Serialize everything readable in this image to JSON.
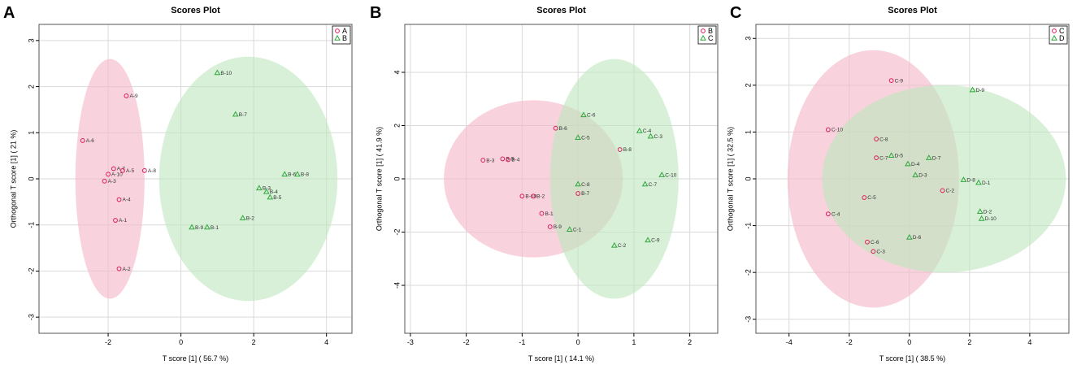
{
  "colors": {
    "group1_point": "#dd1c5a",
    "group2_point": "#2ea83a",
    "group1_ellipse": "#f4b6c6",
    "group2_ellipse": "#bfe6bf",
    "grid": "#d9d9d9",
    "frame": "#555555"
  },
  "chart_data": [
    {
      "type": "scatter",
      "panel_label": "A",
      "title": "Scores Plot",
      "xlabel": "T score [1] ( 56.7 %)",
      "ylabel": "Orthogonal T score [1] ( 21 %)",
      "xlim": [
        -3.9,
        4.7
      ],
      "ylim": [
        -3.35,
        3.35
      ],
      "xticks": [
        -2,
        0,
        2,
        4
      ],
      "yticks": [
        -3,
        -2,
        -1,
        0,
        1,
        2,
        3
      ],
      "grid": true,
      "legend_position": "top-right",
      "series": [
        {
          "name": "A",
          "marker": "circle",
          "ellipse": {
            "cx": -1.95,
            "cy": 0,
            "rx": 0.95,
            "ry": 2.6
          },
          "points": [
            {
              "label": "A-9",
              "x": -1.5,
              "y": 1.8
            },
            {
              "label": "A-6",
              "x": -2.7,
              "y": 0.83
            },
            {
              "label": "A-7",
              "x": -1.85,
              "y": 0.22
            },
            {
              "label": "A-5",
              "x": -1.6,
              "y": 0.18
            },
            {
              "label": "A-10",
              "x": -2.0,
              "y": 0.1
            },
            {
              "label": "A-8",
              "x": -1.0,
              "y": 0.18
            },
            {
              "label": "A-3",
              "x": -2.1,
              "y": -0.05
            },
            {
              "label": "A-4",
              "x": -1.7,
              "y": -0.45
            },
            {
              "label": "A-1",
              "x": -1.8,
              "y": -0.9
            },
            {
              "label": "A-2",
              "x": -1.7,
              "y": -1.95
            }
          ]
        },
        {
          "name": "B",
          "marker": "triangle",
          "ellipse": {
            "cx": 1.85,
            "cy": 0,
            "rx": 2.45,
            "ry": 2.65
          },
          "points": [
            {
              "label": "B-10",
              "x": 1.0,
              "y": 2.3
            },
            {
              "label": "B-7",
              "x": 1.5,
              "y": 1.4
            },
            {
              "label": "B-6",
              "x": 2.85,
              "y": 0.1
            },
            {
              "label": "B-8",
              "x": 3.2,
              "y": 0.1
            },
            {
              "label": "B-3",
              "x": 2.15,
              "y": -0.2
            },
            {
              "label": "B-4",
              "x": 2.35,
              "y": -0.28
            },
            {
              "label": "B-5",
              "x": 2.45,
              "y": -0.4
            },
            {
              "label": "B-2",
              "x": 1.7,
              "y": -0.85
            },
            {
              "label": "B-9",
              "x": 0.3,
              "y": -1.05
            },
            {
              "label": "B-1",
              "x": 0.72,
              "y": -1.05
            }
          ]
        }
      ]
    },
    {
      "type": "scatter",
      "panel_label": "B",
      "title": "Scores Plot",
      "xlabel": "T score [1] ( 14.1 %)",
      "ylabel": "Orthogonal T score [1] ( 41.9 %)",
      "xlim": [
        -3.1,
        2.5
      ],
      "ylim": [
        -5.8,
        5.8
      ],
      "xticks": [
        -3,
        -2,
        -1,
        0,
        1,
        2
      ],
      "yticks": [
        -4,
        -2,
        0,
        2,
        4
      ],
      "grid": true,
      "legend_position": "top-right",
      "series": [
        {
          "name": "B",
          "marker": "circle",
          "ellipse": {
            "cx": -0.8,
            "cy": 0,
            "rx": 1.6,
            "ry": 2.95
          },
          "points": [
            {
              "label": "B-6",
              "x": -0.4,
              "y": 1.9
            },
            {
              "label": "B-8",
              "x": 0.75,
              "y": 1.1
            },
            {
              "label": "B-3",
              "x": -1.7,
              "y": 0.7
            },
            {
              "label": "B-5",
              "x": -1.35,
              "y": 0.75
            },
            {
              "label": "B-4",
              "x": -1.25,
              "y": 0.72
            },
            {
              "label": "B-10",
              "x": -1.0,
              "y": -0.65
            },
            {
              "label": "B-2",
              "x": -0.8,
              "y": -0.65
            },
            {
              "label": "B-7",
              "x": 0.0,
              "y": -0.55
            },
            {
              "label": "B-1",
              "x": -0.65,
              "y": -1.3
            },
            {
              "label": "B-9",
              "x": -0.5,
              "y": -1.8
            }
          ]
        },
        {
          "name": "C",
          "marker": "triangle",
          "ellipse": {
            "cx": 0.65,
            "cy": 0,
            "rx": 1.15,
            "ry": 4.5
          },
          "points": [
            {
              "label": "C-6",
              "x": 0.1,
              "y": 2.4
            },
            {
              "label": "C-4",
              "x": 1.1,
              "y": 1.8
            },
            {
              "label": "C-3",
              "x": 1.3,
              "y": 1.6
            },
            {
              "label": "C-5",
              "x": 0.0,
              "y": 1.55
            },
            {
              "label": "C-10",
              "x": 1.5,
              "y": 0.15
            },
            {
              "label": "C-8",
              "x": 0.0,
              "y": -0.2
            },
            {
              "label": "C-7",
              "x": 1.2,
              "y": -0.2
            },
            {
              "label": "C-1",
              "x": -0.15,
              "y": -1.9
            },
            {
              "label": "C-9",
              "x": 1.25,
              "y": -2.3
            },
            {
              "label": "C-2",
              "x": 0.65,
              "y": -2.5
            }
          ]
        }
      ]
    },
    {
      "type": "scatter",
      "panel_label": "C",
      "title": "Scores Plot",
      "xlabel": "T score [1] ( 38.5 %)",
      "ylabel": "Orthogonal T score [1] ( 32.5 %)",
      "xlim": [
        -5.1,
        5.3
      ],
      "ylim": [
        -3.3,
        3.3
      ],
      "xticks": [
        -4,
        -2,
        0,
        2,
        4
      ],
      "yticks": [
        -3,
        -2,
        -1,
        0,
        1,
        2,
        3
      ],
      "grid": true,
      "legend_position": "top-right",
      "series": [
        {
          "name": "C",
          "marker": "circle",
          "ellipse": {
            "cx": -1.2,
            "cy": 0,
            "rx": 2.85,
            "ry": 2.75
          },
          "points": [
            {
              "label": "C-9",
              "x": -0.6,
              "y": 2.1
            },
            {
              "label": "C-10",
              "x": -2.7,
              "y": 1.05
            },
            {
              "label": "C-8",
              "x": -1.1,
              "y": 0.85
            },
            {
              "label": "C-7",
              "x": -1.1,
              "y": 0.45
            },
            {
              "label": "C-2",
              "x": 1.1,
              "y": -0.25
            },
            {
              "label": "C-5",
              "x": -1.5,
              "y": -0.4
            },
            {
              "label": "C-4",
              "x": -2.7,
              "y": -0.75
            },
            {
              "label": "C-6",
              "x": -1.4,
              "y": -1.35
            },
            {
              "label": "C-3",
              "x": -1.2,
              "y": -1.55
            }
          ]
        },
        {
          "name": "D",
          "marker": "triangle",
          "ellipse": {
            "cx": 1.15,
            "cy": 0,
            "rx": 4.05,
            "ry": 2.0
          },
          "points": [
            {
              "label": "D-9",
              "x": 2.1,
              "y": 1.9
            },
            {
              "label": "D-5",
              "x": -0.6,
              "y": 0.5
            },
            {
              "label": "D-7",
              "x": 0.65,
              "y": 0.45
            },
            {
              "label": "D-4",
              "x": -0.05,
              "y": 0.32
            },
            {
              "label": "D-3",
              "x": 0.2,
              "y": 0.08
            },
            {
              "label": "D-8",
              "x": 1.8,
              "y": -0.02
            },
            {
              "label": "D-1",
              "x": 2.3,
              "y": -0.08
            },
            {
              "label": "D-6",
              "x": 0.0,
              "y": -1.25
            },
            {
              "label": "D-2",
              "x": 2.35,
              "y": -0.7
            },
            {
              "label": "D-10",
              "x": 2.4,
              "y": -0.85
            }
          ]
        }
      ]
    }
  ]
}
